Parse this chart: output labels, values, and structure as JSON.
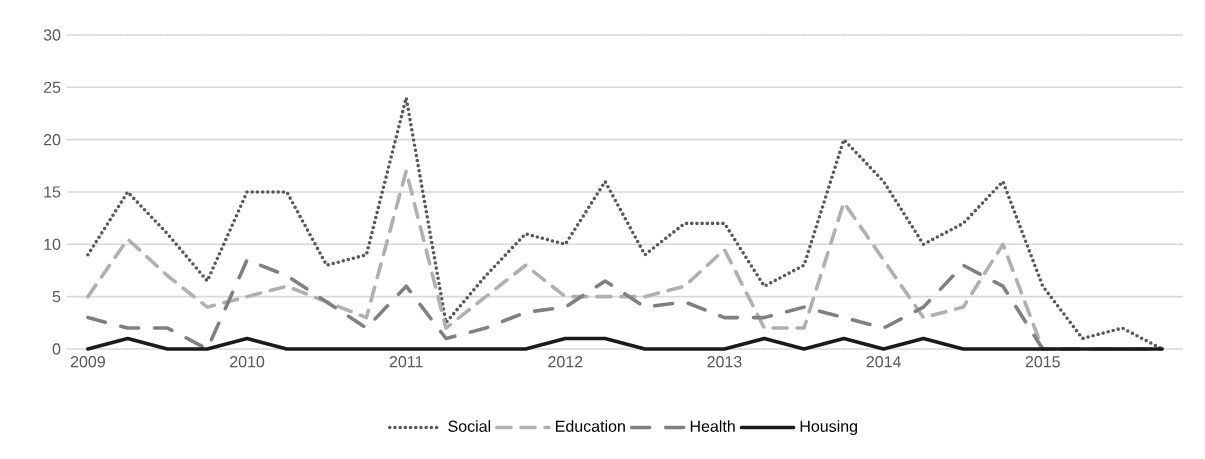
{
  "chart_data": {
    "type": "line",
    "categories": [
      "2009",
      null,
      null,
      null,
      "2010",
      null,
      null,
      null,
      "2011",
      null,
      null,
      null,
      "2012",
      null,
      null,
      null,
      "2013",
      null,
      null,
      null,
      "2014",
      null,
      null,
      null,
      "2015",
      null,
      null,
      null
    ],
    "series": [
      {
        "name": "Social",
        "color": "#595959",
        "line_style": "dotted",
        "values": [
          9,
          15,
          11,
          6.5,
          15,
          15,
          8,
          9,
          24,
          2.5,
          7,
          11,
          10,
          16,
          9,
          12,
          12,
          6,
          8,
          20,
          16,
          10,
          12,
          16,
          6,
          1,
          2,
          0
        ]
      },
      {
        "name": "Education",
        "color": "#b0b0b0",
        "line_style": "dashed",
        "values": [
          5,
          10.5,
          7,
          4,
          5,
          6,
          4.5,
          3,
          17,
          2,
          5,
          8,
          5,
          5,
          5,
          6,
          9.5,
          2,
          2,
          14,
          8.5,
          3,
          4,
          10,
          0,
          0,
          0,
          0
        ]
      },
      {
        "name": "Health",
        "color": "#808080",
        "line_style": "dashed",
        "values": [
          3,
          2,
          2,
          0,
          8.5,
          7,
          4.5,
          2,
          6,
          1,
          2,
          3.5,
          4,
          6.5,
          4,
          4.5,
          3,
          3,
          4,
          3,
          2,
          4,
          8,
          6,
          0,
          0,
          0,
          0
        ]
      },
      {
        "name": "Housing",
        "color": "#1a1a1a",
        "line_style": "solid",
        "values": [
          0,
          1,
          0,
          0,
          1,
          0,
          0,
          0,
          0,
          0,
          0,
          0,
          1,
          1,
          0,
          0,
          0,
          1,
          0,
          1,
          0,
          1,
          0,
          0,
          0,
          0,
          0,
          0
        ]
      }
    ],
    "ylim": [
      0,
      30
    ],
    "yticks": [
      0,
      5,
      10,
      15,
      20,
      25,
      30
    ],
    "grid": "y",
    "legend": "bottom",
    "marker": "none"
  }
}
